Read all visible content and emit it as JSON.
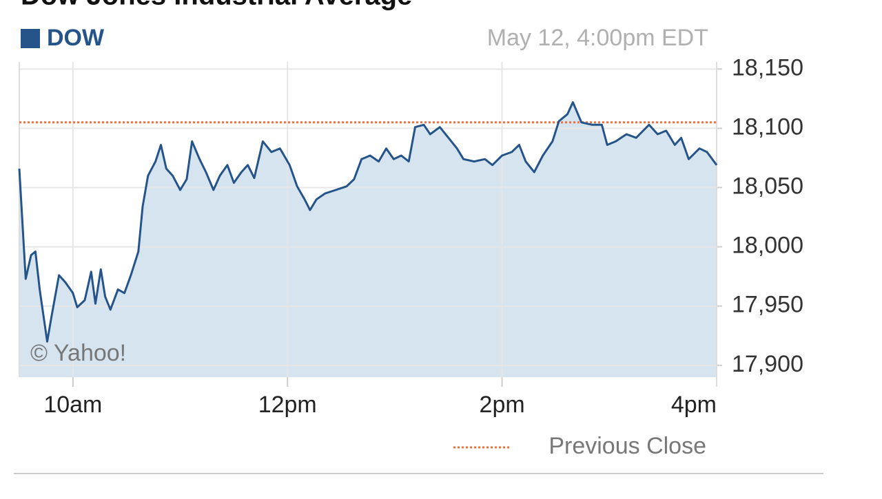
{
  "chart_data": {
    "type": "line",
    "title": "Dow Jones Industrial Average",
    "timestamp": "May 12, 4:00pm EDT",
    "watermark": "© Yahoo!",
    "grid": true,
    "fill": "#d6e4f0",
    "x": [
      9.5,
      9.56,
      9.61,
      9.65,
      9.69,
      9.76,
      9.8,
      9.87,
      9.93,
      10,
      10.04,
      10.11,
      10.17,
      10.21,
      10.26,
      10.3,
      10.35,
      10.42,
      10.48,
      10.54,
      10.61,
      10.65,
      10.7,
      10.77,
      10.82,
      10.87,
      10.93,
      11,
      11.06,
      11.11,
      11.18,
      11.24,
      11.31,
      11.37,
      11.44,
      11.5,
      11.57,
      11.63,
      11.69,
      11.77,
      11.85,
      11.93,
      12.02,
      12.09,
      12.16,
      12.21,
      12.27,
      12.35,
      12.45,
      12.55,
      12.62,
      12.69,
      12.77,
      12.85,
      12.92,
      12.99,
      13.06,
      13.13,
      13.19,
      13.27,
      13.33,
      13.42,
      13.5,
      13.58,
      13.64,
      13.74,
      13.84,
      13.91,
      14,
      14.09,
      14.16,
      14.22,
      14.3,
      14.38,
      14.47,
      14.53,
      14.61,
      14.66,
      14.74,
      14.84,
      14.93,
      14.98,
      15.06,
      15.16,
      15.25,
      15.37,
      15.45,
      15.53,
      15.61,
      15.67,
      15.74,
      15.84,
      15.91,
      16
    ],
    "series": [
      {
        "name": "DOW",
        "color": "#245489",
        "values": [
          18066,
          17973,
          17993,
          17996,
          17964,
          17920,
          17941,
          17976,
          17970,
          17961,
          17949,
          17955,
          17979,
          17952,
          17981,
          17958,
          17947,
          17964,
          17961,
          17976,
          17996,
          18034,
          18060,
          18072,
          18086,
          18066,
          18060,
          18048,
          18057,
          18089,
          18074,
          18063,
          18048,
          18060,
          18069,
          18054,
          18063,
          18069,
          18058,
          18089,
          18080,
          18083,
          18069,
          18051,
          18040,
          18031,
          18040,
          18045,
          18048,
          18051,
          18057,
          18074,
          18077,
          18072,
          18083,
          18074,
          18077,
          18072,
          18101,
          18103,
          18095,
          18101,
          18092,
          18083,
          18074,
          18072,
          18074,
          18069,
          18077,
          18080,
          18086,
          18072,
          18063,
          18077,
          18089,
          18106,
          18112,
          18122,
          18105,
          18103,
          18103,
          18086,
          18089,
          18095,
          18092,
          18103,
          18095,
          18098,
          18086,
          18092,
          18074,
          18083,
          18080,
          18069
        ]
      }
    ],
    "reference_line": {
      "name": "Previous Close",
      "value": 18105,
      "color": "#f07040"
    },
    "xlim": [
      9.5,
      16
    ],
    "xticks": [
      {
        "value": 10,
        "label": "10am"
      },
      {
        "value": 12,
        "label": "12pm"
      },
      {
        "value": 14,
        "label": "2pm"
      },
      {
        "value": 16,
        "label": "4pm"
      }
    ],
    "ylim": [
      17890,
      18156
    ],
    "yticks": [
      {
        "value": 17900,
        "label": "17,900"
      },
      {
        "value": 17950,
        "label": "17,950"
      },
      {
        "value": 18000,
        "label": "18,000"
      },
      {
        "value": 18050,
        "label": "18,050"
      },
      {
        "value": 18100,
        "label": "18,100"
      },
      {
        "value": 18150,
        "label": "18,150"
      }
    ]
  }
}
